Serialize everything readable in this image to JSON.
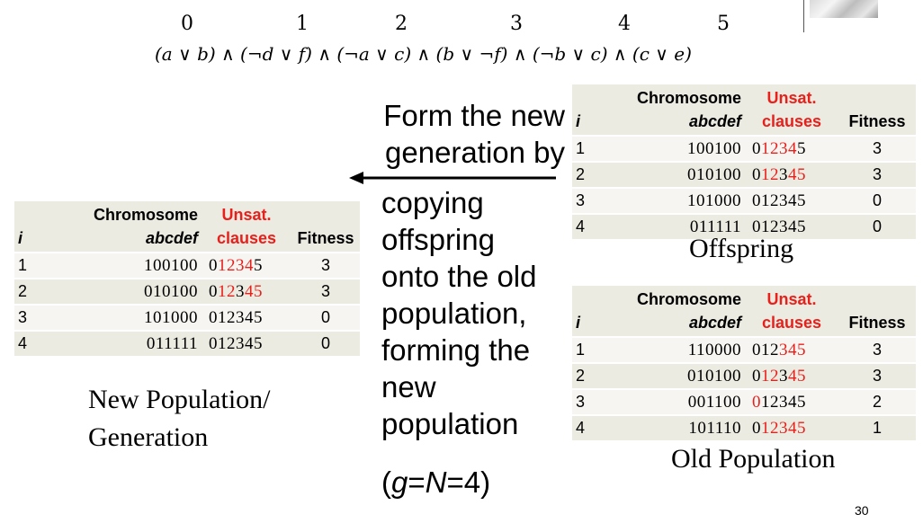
{
  "formula": {
    "indices": [
      "0",
      "1",
      "2",
      "3",
      "4",
      "5"
    ],
    "clauses": [
      "(𝑎 ∨ 𝑏)",
      "(¬𝑑 ∨ 𝑓)",
      "(¬𝑎 ∨ 𝑐)",
      "(𝑏 ∨ ¬𝑓)",
      "(¬𝑏 ∨ 𝑐)",
      "(𝑐 ∨ 𝑒)"
    ],
    "and_symbol": "∧"
  },
  "headers": {
    "i": "i",
    "chromosome": "Chromosome",
    "abcdef": "abcdef",
    "unsat": "Unsat.",
    "clauses": "clauses",
    "fitness": "Fitness"
  },
  "offspring": {
    "caption": "Offspring",
    "rows": [
      {
        "i": "1",
        "chromosome": "100100",
        "unsat": [
          {
            "t": "0",
            "r": false
          },
          {
            "t": "1234",
            "r": true
          },
          {
            "t": "5",
            "r": false
          }
        ],
        "fitness": "3"
      },
      {
        "i": "2",
        "chromosome": "010100",
        "unsat": [
          {
            "t": "0",
            "r": false
          },
          {
            "t": "12",
            "r": true
          },
          {
            "t": "3",
            "r": false
          },
          {
            "t": "45",
            "r": true
          }
        ],
        "fitness": "3"
      },
      {
        "i": "3",
        "chromosome": "101000",
        "unsat": [
          {
            "t": "012345",
            "r": false
          }
        ],
        "fitness": "0"
      },
      {
        "i": "4",
        "chromosome": "011111",
        "unsat": [
          {
            "t": "012345",
            "r": false
          }
        ],
        "fitness": "0"
      }
    ]
  },
  "old_population": {
    "caption": "Old Population",
    "rows": [
      {
        "i": "1",
        "chromosome": "110000",
        "unsat": [
          {
            "t": "012",
            "r": false
          },
          {
            "t": "345",
            "r": true
          }
        ],
        "fitness": "3"
      },
      {
        "i": "2",
        "chromosome": "010100",
        "unsat": [
          {
            "t": "0",
            "r": false
          },
          {
            "t": "12",
            "r": true
          },
          {
            "t": "3",
            "r": false
          },
          {
            "t": "45",
            "r": true
          }
        ],
        "fitness": "3"
      },
      {
        "i": "3",
        "chromosome": "001100",
        "unsat": [
          {
            "t": "0",
            "r": true
          },
          {
            "t": "12345",
            "r": false
          }
        ],
        "fitness": "2"
      },
      {
        "i": "4",
        "chromosome": "101110",
        "unsat": [
          {
            "t": "0",
            "r": false
          },
          {
            "t": "12345",
            "r": true
          },
          {
            "t": "",
            "r": false
          }
        ],
        "fitness": "1"
      }
    ]
  },
  "new_population": {
    "caption_line1": "New Population/",
    "caption_line2": "Generation",
    "rows": [
      {
        "i": "1",
        "chromosome": "100100",
        "unsat": [
          {
            "t": "0",
            "r": false
          },
          {
            "t": "1234",
            "r": true
          },
          {
            "t": "5",
            "r": false
          }
        ],
        "fitness": "3"
      },
      {
        "i": "2",
        "chromosome": "010100",
        "unsat": [
          {
            "t": "0",
            "r": false
          },
          {
            "t": "12",
            "r": true
          },
          {
            "t": "3",
            "r": false
          },
          {
            "t": "45",
            "r": true
          }
        ],
        "fitness": "3"
      },
      {
        "i": "3",
        "chromosome": "101000",
        "unsat": [
          {
            "t": "012345",
            "r": false
          }
        ],
        "fitness": "0"
      },
      {
        "i": "4",
        "chromosome": "011111",
        "unsat": [
          {
            "t": "012345",
            "r": false
          }
        ],
        "fitness": "0"
      }
    ]
  },
  "middle_text": {
    "line1": "Form the new",
    "line2": "generation by",
    "body": [
      "copying",
      "offspring",
      "onto the old",
      "population,",
      "forming the",
      "new",
      "population"
    ],
    "param_open": "(",
    "param_g": "g",
    "param_eq1": "=",
    "param_N": "N",
    "param_eq2": "=4)"
  },
  "page_number": "30"
}
